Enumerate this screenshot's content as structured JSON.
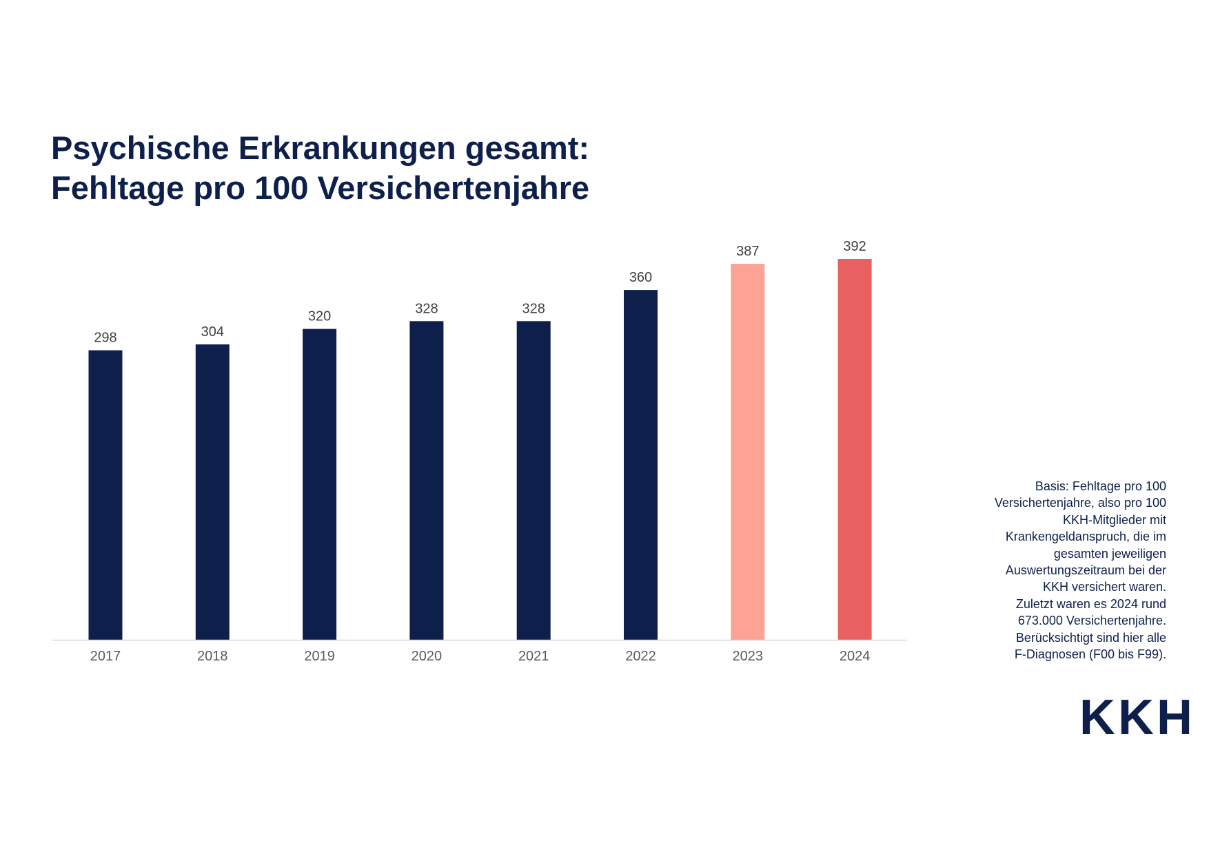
{
  "header": {
    "title_line1": "Psychische Erkrankungen gesamt:",
    "title_line2": "Fehltage pro 100 Versichertenjahre"
  },
  "note": {
    "text": "Basis: Fehltage pro 100\nVersichertenjahre, also pro 100\nKKH-Mitglieder mit\nKrankengeldanspruch, die im\ngesamten jeweiligen\nAuswertungszeitraum bei der\nKKH versichert waren.\nZuletzt waren es 2024 rund\n673.000 Versichertenjahre.\nBerücksichtigt sind hier alle\nF-Diagnosen (F00 bis F99)."
  },
  "logo": {
    "text": "KKH",
    "color": "#0d1f4a"
  },
  "chart_data": {
    "type": "bar",
    "title": "Psychische Erkrankungen gesamt: Fehltage pro 100 Versichertenjahre",
    "categories": [
      "2017",
      "2018",
      "2019",
      "2020",
      "2021",
      "2022",
      "2023",
      "2024"
    ],
    "values": [
      298,
      304,
      320,
      328,
      328,
      360,
      387,
      392
    ],
    "colors": [
      "#0d1f4a",
      "#0d1f4a",
      "#0d1f4a",
      "#0d1f4a",
      "#0d1f4a",
      "#0d1f4a",
      "#fca395",
      "#e96060"
    ],
    "xlabel": "",
    "ylabel": "",
    "ylim": [
      0,
      392
    ],
    "grid": false,
    "data_labels": true,
    "axis_color": "#d9d9d9"
  }
}
